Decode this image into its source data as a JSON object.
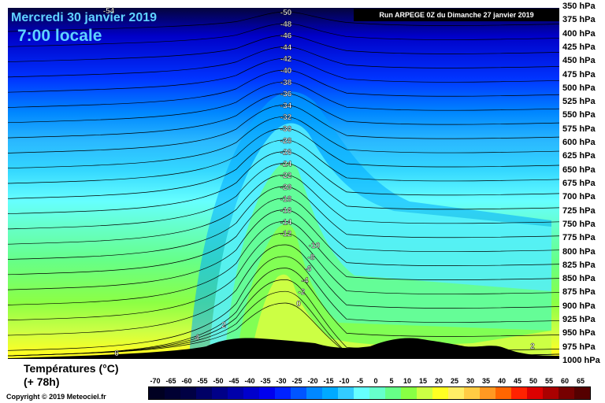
{
  "header": {
    "date": "Mercredi 30 janvier 2019",
    "time": "7:00 locale",
    "run": "Run ARPEGE 0Z du Dimanche 27 janvier 2019"
  },
  "footer": {
    "variable": "Températures (°C)",
    "lead": "(+ 78h)",
    "copyright": "Copyright © 2019 Meteociel.fr"
  },
  "colorbar": {
    "ticks": [
      "-70",
      "-65",
      "-60",
      "-55",
      "-50",
      "-45",
      "-40",
      "-35",
      "-30",
      "-25",
      "-20",
      "-15",
      "-10",
      "-5",
      "0",
      "5",
      "10",
      "15",
      "20",
      "25",
      "30",
      "35",
      "40",
      "45",
      "50",
      "55",
      "60",
      "65"
    ],
    "colors": [
      "#000022",
      "#000033",
      "#000044",
      "#000066",
      "#000088",
      "#0000aa",
      "#0000cc",
      "#0000ee",
      "#0022ff",
      "#0055ff",
      "#0088ff",
      "#00aaff",
      "#33ccff",
      "#66ffff",
      "#66ffcc",
      "#66ff88",
      "#88ff44",
      "#ccff44",
      "#ffff22",
      "#ffee66",
      "#ffcc44",
      "#ff9922",
      "#ff6600",
      "#ff2200",
      "#dd0000",
      "#aa0000",
      "#770000",
      "#550000"
    ]
  },
  "chart_data": {
    "type": "heatmap",
    "title": "Températures (°C)",
    "y_levels_hPa": [
      350,
      375,
      400,
      425,
      450,
      475,
      500,
      525,
      550,
      575,
      600,
      625,
      650,
      675,
      700,
      725,
      750,
      775,
      800,
      825,
      850,
      875,
      900,
      925,
      950,
      975,
      1000
    ],
    "y_labels": [
      "350 hPa",
      "375 hPa",
      "400 hPa",
      "425 hPa",
      "450 hPa",
      "475 hPa",
      "500 hPa",
      "525 hPa",
      "550 hPa",
      "575 hPa",
      "600 hPa",
      "625 hPa",
      "650 hPa",
      "675 hPa",
      "700 hPa",
      "725 hPa",
      "750 hPa",
      "775 hPa",
      "800 hPa",
      "825 hPa",
      "850 hPa",
      "875 hPa",
      "900 hPa",
      "925 hPa",
      "950 hPa",
      "975 hPa",
      "1000 hPa"
    ],
    "contour_interval_C": 2,
    "ridge_axis_isotherm_labels": [
      "-50",
      "-48",
      "-46",
      "-44",
      "-42",
      "-40",
      "-38",
      "-36",
      "-34",
      "-32",
      "-30",
      "-28",
      "-26",
      "-24",
      "-22",
      "-20",
      "-18",
      "-16",
      "-14",
      "-12",
      "-10",
      "-8",
      "-6",
      "-4",
      "-2",
      "0"
    ],
    "other_labels": [
      "-54",
      "2",
      "4",
      "6",
      "2"
    ]
  }
}
